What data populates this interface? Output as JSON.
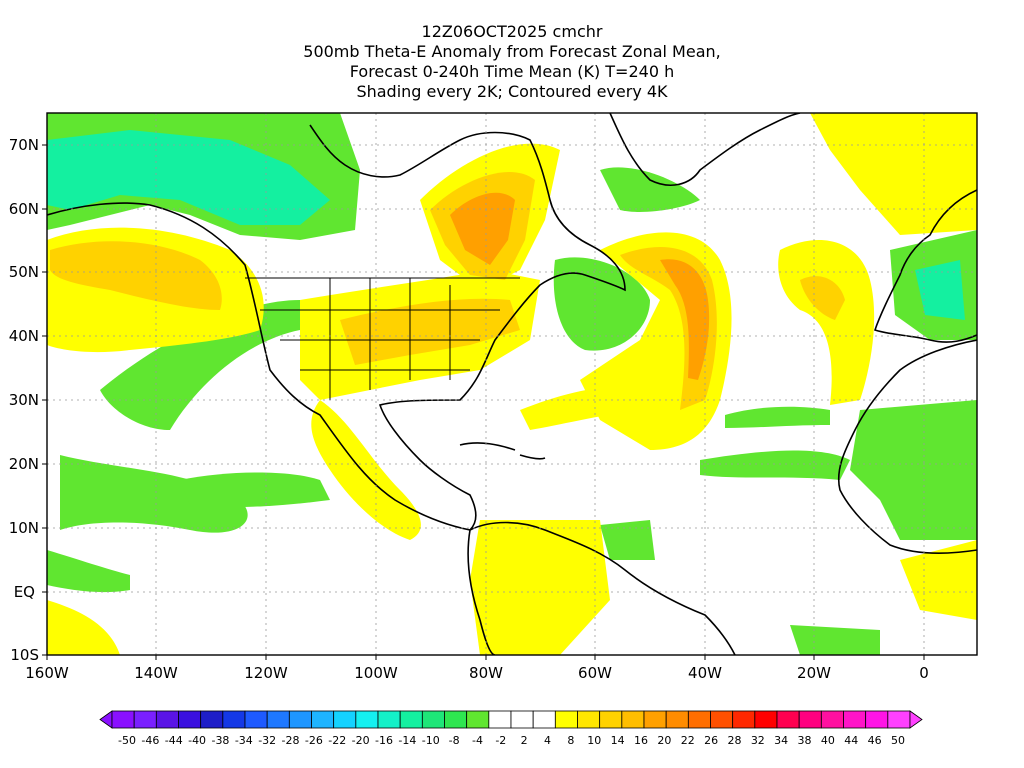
{
  "title": {
    "line1": "12Z06OCT2025 cmchr",
    "line2": "500mb Theta-E Anomaly from Forecast Zonal Mean,",
    "line3": "Forecast 0-240h Time Mean (K) T=240 h",
    "line4": "Shading every 2K; Contoured every 4K"
  },
  "axes": {
    "lat_labels": [
      "70N",
      "60N",
      "50N",
      "40N",
      "30N",
      "20N",
      "10N",
      "EQ",
      "10S"
    ],
    "lon_labels": [
      "160W",
      "140W",
      "120W",
      "100W",
      "80W",
      "60W",
      "40W",
      "20W",
      "0"
    ]
  },
  "colorbar": {
    "labels": [
      "-50",
      "-46",
      "-44",
      "-40",
      "-38",
      "-34",
      "-32",
      "-28",
      "-26",
      "-22",
      "-20",
      "-16",
      "-14",
      "-10",
      "-8",
      "-4",
      "-2",
      "2",
      "4",
      "8",
      "10",
      "14",
      "16",
      "20",
      "22",
      "26",
      "28",
      "32",
      "34",
      "38",
      "40",
      "44",
      "46",
      "50"
    ],
    "colors": [
      "#8a10ff",
      "#7a20ff",
      "#5a14e6",
      "#3a10e0",
      "#1e1ec8",
      "#1438e6",
      "#1e5aff",
      "#1e78ff",
      "#1e96ff",
      "#1eb4ff",
      "#14d2ff",
      "#14f0f0",
      "#14f0c8",
      "#14f0a0",
      "#1ee678",
      "#2ee650",
      "#60e630",
      "#ffffff",
      "#ffffff",
      "#ffffff",
      "#ffff00",
      "#ffe600",
      "#ffd200",
      "#ffbe00",
      "#ffa000",
      "#ff8c00",
      "#ff6e00",
      "#ff5000",
      "#ff2800",
      "#ff0000",
      "#ff0050",
      "#ff0080",
      "#ff10a0",
      "#ff14c8",
      "#ff14e6",
      "#ff40ff"
    ]
  },
  "map_colors": {
    "green": "#60e630",
    "aqua": "#14f0a0",
    "yellow": "#ffff00",
    "gold": "#ffd200",
    "orange": "#ffa000"
  }
}
